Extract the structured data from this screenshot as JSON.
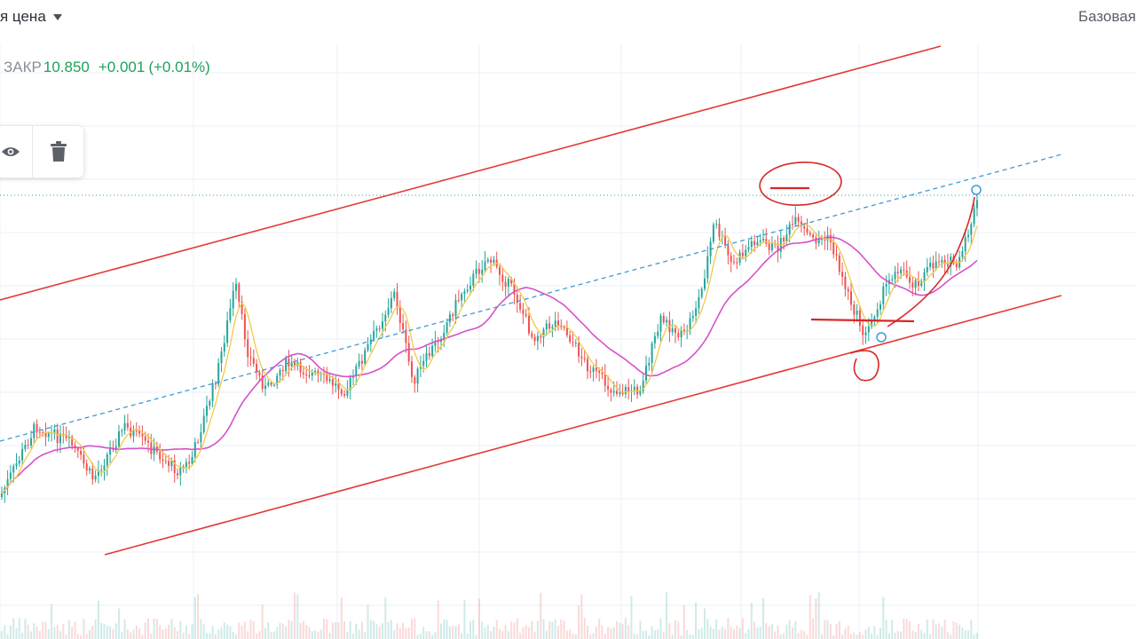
{
  "header": {
    "price_type_label": "я цена",
    "scale_mode_label": "Базовая"
  },
  "legend": {
    "close_label": "ЗАКР",
    "close_value": "10.850",
    "change": "+0.001",
    "change_pct": "(+0.01%)"
  },
  "toolbar": {
    "visibility_icon": "eye-icon",
    "delete_icon": "trash-icon"
  },
  "colors": {
    "up": "#26a69a",
    "down": "#ef5350",
    "ma_fast": "#f2c94c",
    "ma_slow": "#d651c8",
    "channel": "#e53935",
    "trendline": "#3d9ad8",
    "grid": "#eaf1f8",
    "legend_value": "#22a05a"
  },
  "chart_data": {
    "type": "candlestick",
    "series": [
      {
        "name": "price",
        "style": "candles"
      },
      {
        "name": "MA fast",
        "style": "line"
      },
      {
        "name": "MA slow",
        "style": "line"
      },
      {
        "name": "volume",
        "style": "bars"
      }
    ],
    "last_close": 10.85,
    "grid": true,
    "drawings": [
      "parallel-channel",
      "dashed-trendline",
      "hand-drawn-annotations"
    ]
  }
}
